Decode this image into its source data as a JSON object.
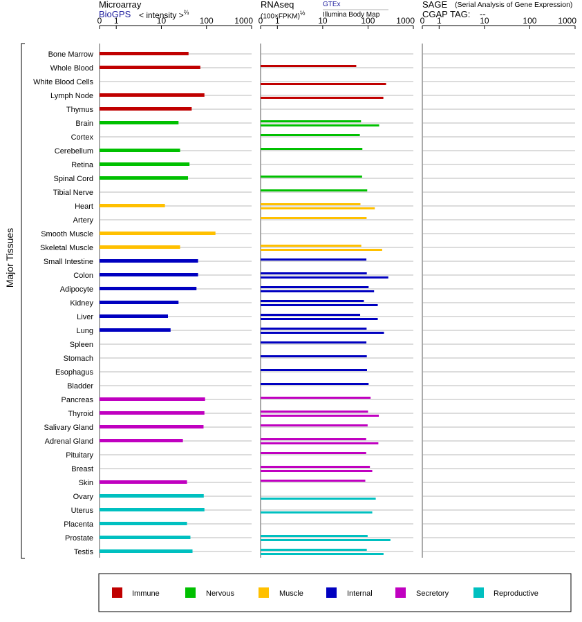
{
  "header": {
    "microarray": {
      "title": "Microarray",
      "source": "BioGPS",
      "measure": "< intensity >",
      "exponent": "⅔"
    },
    "rnaseq": {
      "title": "RNAseq",
      "measure": "(100×FPKM)",
      "exponent": "½",
      "source_gtex": "GTEx",
      "source_ibm": "Illumina Body Map"
    },
    "sage": {
      "title": "SAGE",
      "subtitle": "(Serial Analysis of Gene Expression)",
      "tag_label": "CGAP TAG:",
      "tag_value": "--"
    }
  },
  "y_group_label": "Major Tissues",
  "colors": {
    "Immune": "#c00000",
    "Nervous": "#00c000",
    "Muscle": "#ffc000",
    "Internal": "#0000c0",
    "Secretory": "#c000c0",
    "Reproductive": "#00c0c0"
  },
  "legend": [
    {
      "label": "Immune",
      "color": "#c00000"
    },
    {
      "label": "Nervous",
      "color": "#00c000"
    },
    {
      "label": "Muscle",
      "color": "#ffc000"
    },
    {
      "label": "Internal",
      "color": "#0000c0"
    },
    {
      "label": "Secretory",
      "color": "#c000c0"
    },
    {
      "label": "Reproductive",
      "color": "#00c0c0"
    }
  ],
  "chart_data": [
    {
      "type": "bar",
      "title": "Microarray",
      "scale": "log",
      "xlim": [
        0,
        1000
      ],
      "ticks": [
        "0",
        "1",
        "10",
        "100",
        "1000"
      ],
      "categories": [
        "Bone Marrow",
        "Whole Blood",
        "White Blood Cells",
        "Lymph Node",
        "Thymus",
        "Brain",
        "Cortex",
        "Cerebellum",
        "Retina",
        "Spinal Cord",
        "Tibial Nerve",
        "Heart",
        "Artery",
        "Smooth Muscle",
        "Skeletal Muscle",
        "Small Intestine",
        "Colon",
        "Adipocyte",
        "Kidney",
        "Liver",
        "Lung",
        "Spleen",
        "Stomach",
        "Esophagus",
        "Bladder",
        "Pancreas",
        "Thyroid",
        "Salivary Gland",
        "Adrenal Gland",
        "Pituitary",
        "Breast",
        "Skin",
        "Ovary",
        "Uterus",
        "Placenta",
        "Prostate",
        "Testis"
      ],
      "groups": [
        "Immune",
        "Immune",
        "Immune",
        "Immune",
        "Immune",
        "Nervous",
        "Nervous",
        "Nervous",
        "Nervous",
        "Nervous",
        "Nervous",
        "Muscle",
        "Muscle",
        "Muscle",
        "Muscle",
        "Internal",
        "Internal",
        "Internal",
        "Internal",
        "Internal",
        "Internal",
        "Internal",
        "Internal",
        "Internal",
        "Internal",
        "Secretory",
        "Secretory",
        "Secretory",
        "Secretory",
        "Secretory",
        "Secretory",
        "Secretory",
        "Reproductive",
        "Reproductive",
        "Reproductive",
        "Reproductive",
        "Reproductive"
      ],
      "values": [
        40,
        73,
        null,
        90,
        47,
        24,
        null,
        26,
        42,
        39,
        null,
        12,
        null,
        158,
        26,
        65,
        65,
        60,
        24,
        14,
        16,
        null,
        null,
        null,
        null,
        93,
        90,
        86,
        30,
        null,
        null,
        37,
        87,
        90,
        37,
        44,
        49
      ]
    },
    {
      "type": "bar",
      "title": "RNAseq",
      "scale": "log",
      "xlim": [
        0,
        1000
      ],
      "ticks": [
        "0",
        "1",
        "10",
        "100",
        "1000"
      ],
      "series": [
        {
          "name": "GTEx",
          "values": [
            null,
            55,
            null,
            null,
            null,
            70,
            66,
            75,
            null,
            74,
            96,
            68,
            93,
            null,
            71,
            92,
            94,
            103,
            81,
            67,
            93,
            92,
            94,
            95,
            103,
            114,
            100,
            98,
            91,
            91,
            110,
            87,
            null,
            null,
            null,
            98,
            94
          ]
        },
        {
          "name": "Illumina Body Map",
          "values": [
            null,
            null,
            250,
            218,
            null,
            176,
            null,
            null,
            null,
            null,
            null,
            141,
            null,
            null,
            205,
            null,
            280,
            136,
            164,
            164,
            225,
            null,
            null,
            null,
            null,
            null,
            173,
            null,
            169,
            null,
            124,
            null,
            148,
            124,
            null,
            312,
            220
          ]
        }
      ]
    },
    {
      "type": "bar",
      "title": "SAGE",
      "scale": "log",
      "xlim": [
        0,
        1000
      ],
      "ticks": [
        "0",
        "1",
        "10",
        "100",
        "1000"
      ],
      "values": []
    }
  ]
}
